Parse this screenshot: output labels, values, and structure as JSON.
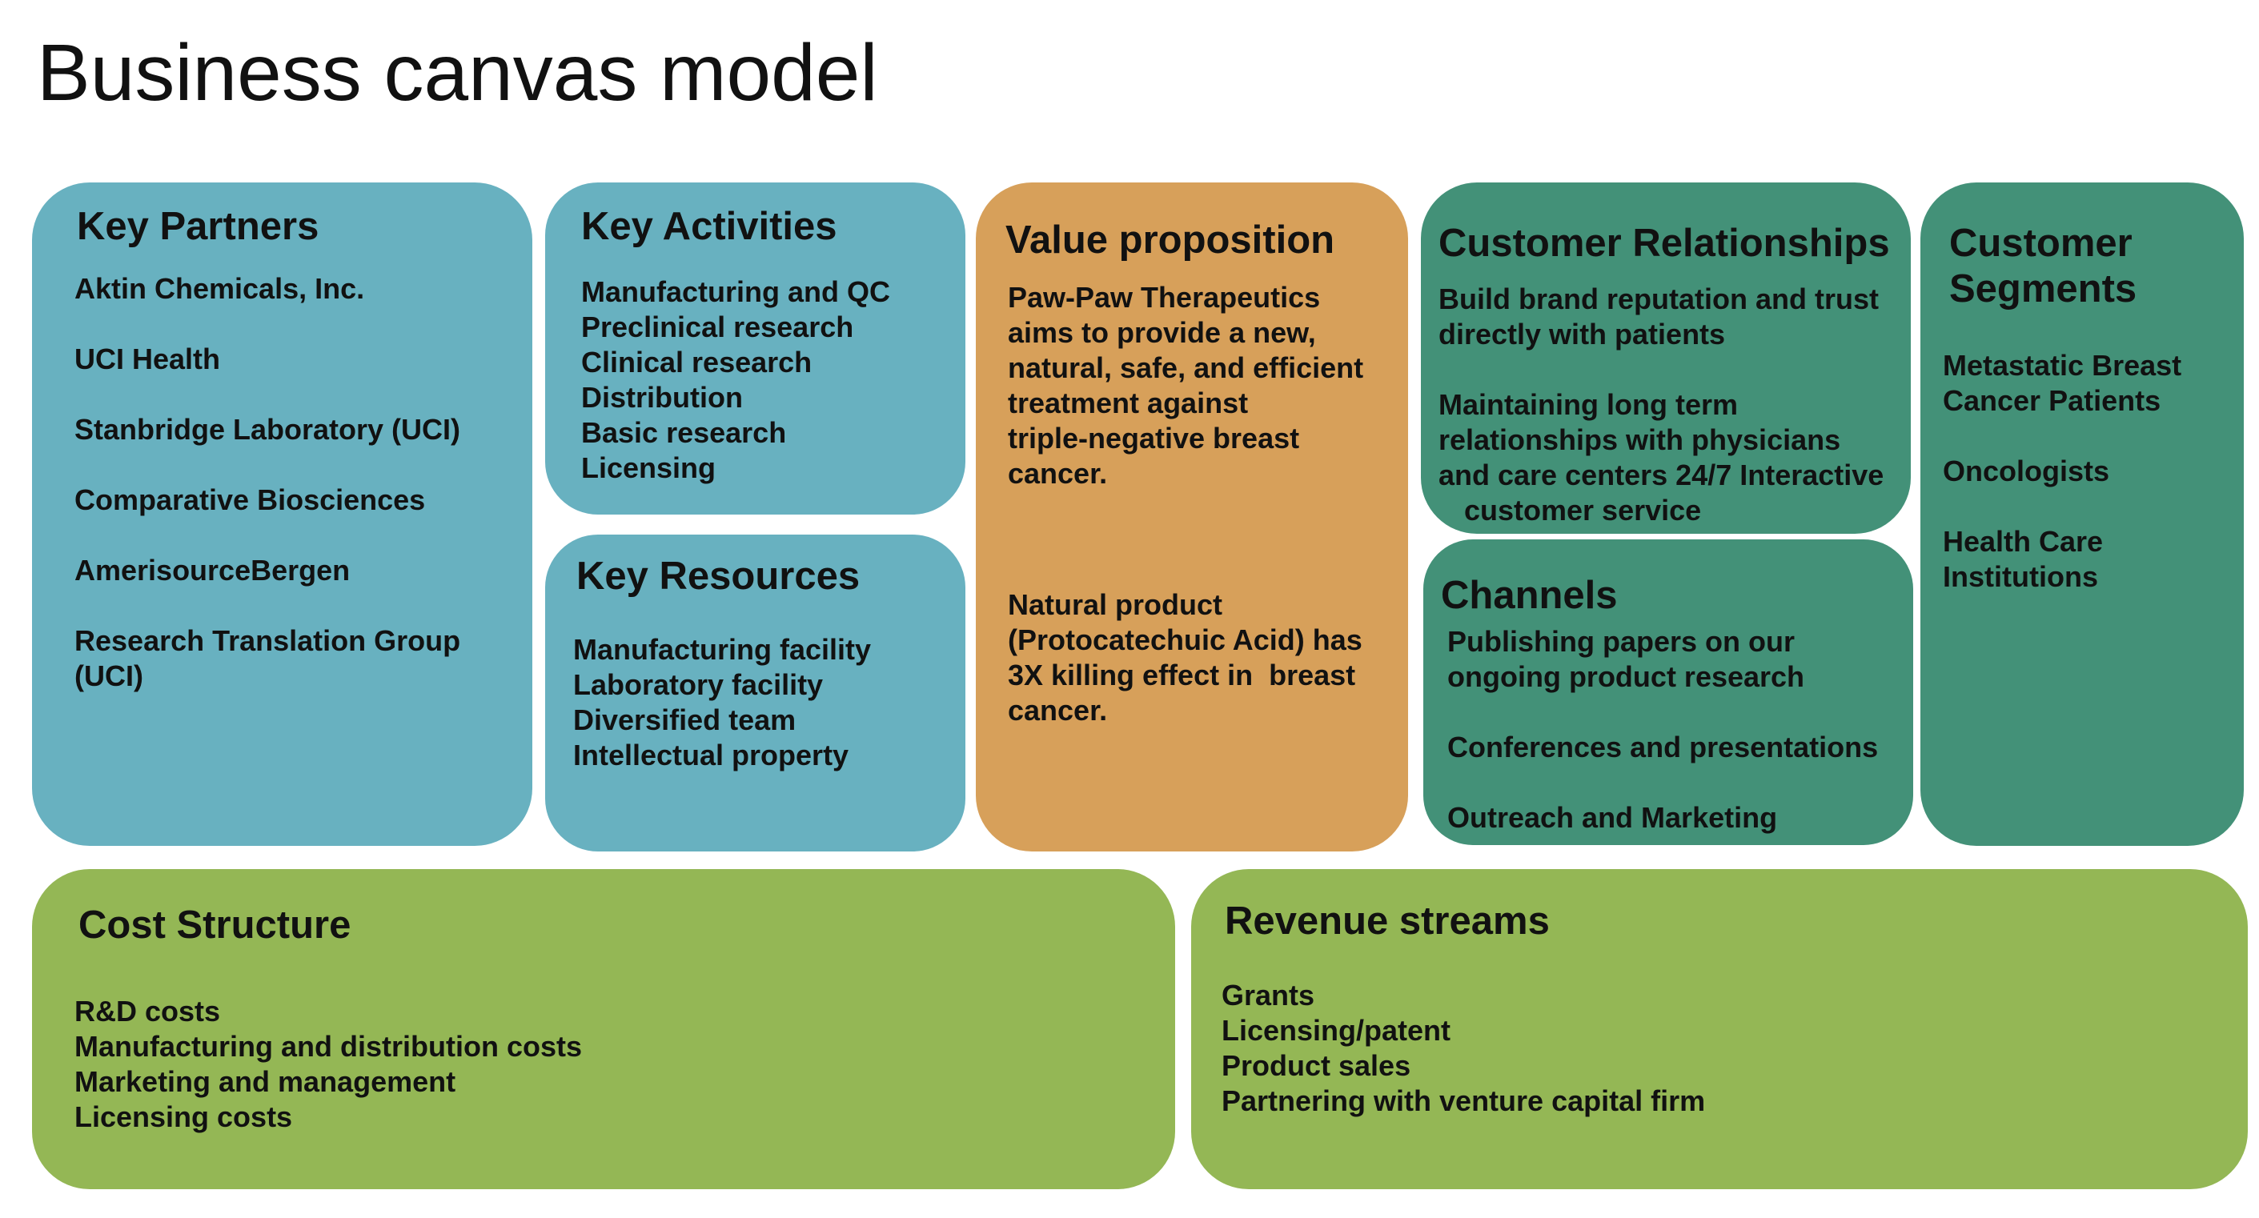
{
  "title": "Business canvas model",
  "key_partners": {
    "heading": "Key Partners",
    "items": [
      "Aktin Chemicals, Inc.",
      "UCI Health",
      "Stanbridge Laboratory (UCI)",
      "Comparative Biosciences",
      "AmerisourceBergen",
      "Research Translation Group",
      "(UCI)"
    ]
  },
  "key_activities": {
    "heading": "Key Activities",
    "items": [
      "Manufacturing and QC",
      "Preclinical research",
      "Clinical research",
      "Distribution",
      "Basic research",
      "Licensing"
    ]
  },
  "key_resources": {
    "heading": "Key Resources",
    "items": [
      "Manufacturing facility",
      "Laboratory facility",
      "Diversified team",
      "Intellectual property"
    ]
  },
  "value_proposition": {
    "heading": "Value proposition",
    "paragraph1": [
      "Paw-Paw Therapeutics",
      "aims to provide a new,",
      "natural, safe, and efficient",
      "treatment against",
      "triple-negative breast",
      "cancer."
    ],
    "paragraph2": [
      "Natural product",
      "(Protocatechuic Acid) has",
      "3X killing effect in  breast",
      "cancer."
    ]
  },
  "customer_relationships": {
    "heading": "Customer Relationships",
    "lines": [
      "Build brand reputation and trust",
      "directly with patients",
      "Maintaining long term",
      "relationships with physicians",
      "and care centers 24/7 Interactive",
      "customer service"
    ]
  },
  "channels": {
    "heading": "Channels",
    "lines": [
      "Publishing papers on our",
      "ongoing product research",
      "Conferences and presentations",
      "Outreach and Marketing"
    ]
  },
  "customer_segments": {
    "heading_lines": [
      "Customer",
      "Segments"
    ],
    "lines": [
      "Metastatic Breast",
      "Cancer Patients",
      "Oncologists",
      "Health Care",
      "Institutions"
    ]
  },
  "cost_structure": {
    "heading": "Cost Structure",
    "items": [
      "R&D costs",
      "Manufacturing and distribution costs",
      "Marketing and management",
      "Licensing costs"
    ]
  },
  "revenue_streams": {
    "heading": "Revenue streams",
    "items": [
      "Grants",
      "Licensing/patent",
      "Product sales",
      "Partnering with venture capital firm"
    ]
  },
  "colors": {
    "blue": "#68b1c0",
    "orange": "#d7a05a",
    "teal": "#439178",
    "green": "#94b755"
  }
}
